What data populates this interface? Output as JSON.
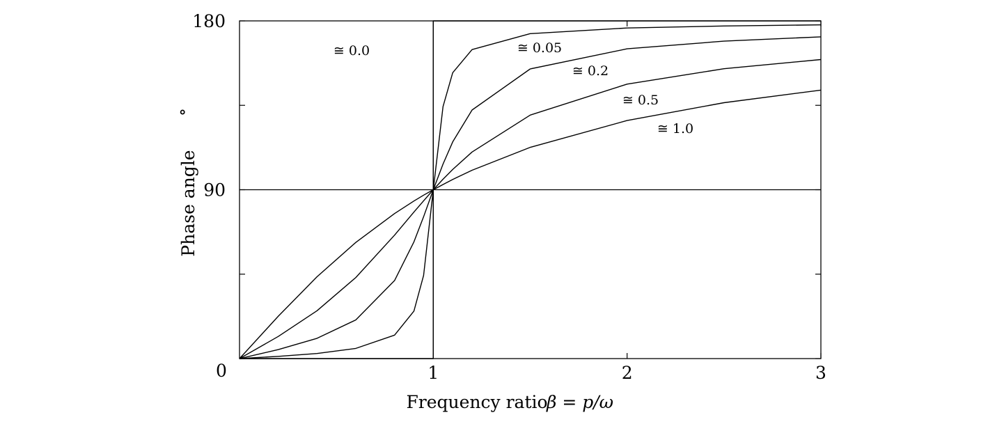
{
  "chart_data": {
    "type": "line",
    "title": "",
    "xlabel": "Frequency ratio",
    "xlabel_math": "β = p/ω",
    "ylabel": "Phase angle",
    "ylabel_unit": "∘",
    "xlim": [
      0,
      3
    ],
    "ylim": [
      0,
      180
    ],
    "x_ticks": [
      {
        "value": 1,
        "label": "1"
      },
      {
        "value": 2,
        "label": "2"
      },
      {
        "value": 3,
        "label": "3"
      }
    ],
    "x_origin_label": "0",
    "y_ticks": [
      {
        "value": 0,
        "label": ""
      },
      {
        "value": 45,
        "label": ""
      },
      {
        "value": 90,
        "label": "90"
      },
      {
        "value": 135,
        "label": ""
      },
      {
        "value": 180,
        "label": "180"
      }
    ],
    "grid": false,
    "reference_lines": {
      "x": [
        1
      ],
      "y": [
        90
      ]
    },
    "series": [
      {
        "name": "≅ 0.0",
        "x": [
          0,
          1,
          1,
          3
        ],
        "y": [
          0,
          0,
          180,
          180
        ]
      },
      {
        "name": "≅ 0.05",
        "x": [
          0,
          0.2,
          0.4,
          0.6,
          0.8,
          0.9,
          0.95,
          1,
          1.05,
          1.1,
          1.2,
          1.5,
          2,
          2.5,
          3
        ],
        "y": [
          0,
          1.2,
          2.7,
          5.4,
          12.5,
          25.3,
          44.3,
          90,
          134.3,
          152.4,
          164.7,
          173.2,
          176.2,
          177.3,
          177.9
        ]
      },
      {
        "name": "≅ 0.2",
        "x": [
          0,
          0.2,
          0.4,
          0.6,
          0.8,
          0.9,
          0.95,
          1,
          1.05,
          1.1,
          1.2,
          1.5,
          2,
          2.5,
          3
        ],
        "y": [
          0,
          4.8,
          10.8,
          20.6,
          41.6,
          62.2,
          75.6,
          90,
          103.7,
          115.5,
          132.5,
          154.4,
          165.1,
          169.2,
          171.5
        ]
      },
      {
        "name": "≅ 0.5",
        "x": [
          0,
          0.2,
          0.4,
          0.6,
          0.8,
          0.9,
          0.95,
          1,
          1.05,
          1.1,
          1.2,
          1.5,
          2,
          2.5,
          3
        ],
        "y": [
          0,
          11.8,
          25.5,
          43.2,
          65.8,
          78.1,
          84.1,
          90,
          95.6,
          100.8,
          110.1,
          129.8,
          146.3,
          154.5,
          159.4
        ]
      },
      {
        "name": "≅ 1.0",
        "x": [
          0,
          0.2,
          0.4,
          0.6,
          0.8,
          0.9,
          0.95,
          1,
          1.05,
          1.1,
          1.2,
          1.5,
          2,
          2.5,
          3
        ],
        "y": [
          0,
          22.6,
          43.6,
          61.9,
          77.3,
          84.0,
          87.1,
          90,
          92.8,
          95.5,
          100.4,
          112.6,
          126.9,
          136.4,
          143.1
        ]
      }
    ]
  }
}
